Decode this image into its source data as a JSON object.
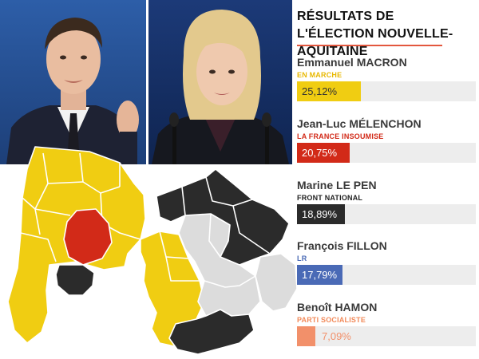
{
  "title": "RÉSULTATS DE L'ÉLECTION NOUVELLE-AQUITAINE",
  "accent_color": "#e3573e",
  "candidates": [
    {
      "name": "Emmanuel MACRON",
      "party": "EN MARCHE",
      "percent": "25,12%",
      "value": 25.12,
      "color": "#f0cd12",
      "party_color": "#e8b800",
      "text_color": "#333333"
    },
    {
      "name": "Jean-Luc MÉLENCHON",
      "party": "LA FRANCE INSOUMISE",
      "percent": "20,75%",
      "value": 20.75,
      "color": "#d22a18",
      "party_color": "#d22a18",
      "text_color": "#ffffff"
    },
    {
      "name": "Marine LE PEN",
      "party": "FRONT NATIONAL",
      "percent": "18,89%",
      "value": 18.89,
      "color": "#2b2b2b",
      "party_color": "#222222",
      "text_color": "#ffffff"
    },
    {
      "name": "François FILLON",
      "party": "LR",
      "percent": "17,79%",
      "value": 17.79,
      "color": "#4a6ab6",
      "party_color": "#4a6ab6",
      "text_color": "#ffffff"
    },
    {
      "name": "Benoît HAMON",
      "party": "PARTI SOCIALISTE",
      "percent": "7,09%",
      "value": 7.09,
      "color": "#f2906a",
      "party_color": "#f28a5a",
      "text_color": "#f2906a"
    }
  ],
  "bar_scale_max": 70,
  "map_colors": {
    "macron": "#f0cd12",
    "melenchon": "#d22a18",
    "lepen": "#2b2b2b",
    "other": "#dcdcdc"
  }
}
